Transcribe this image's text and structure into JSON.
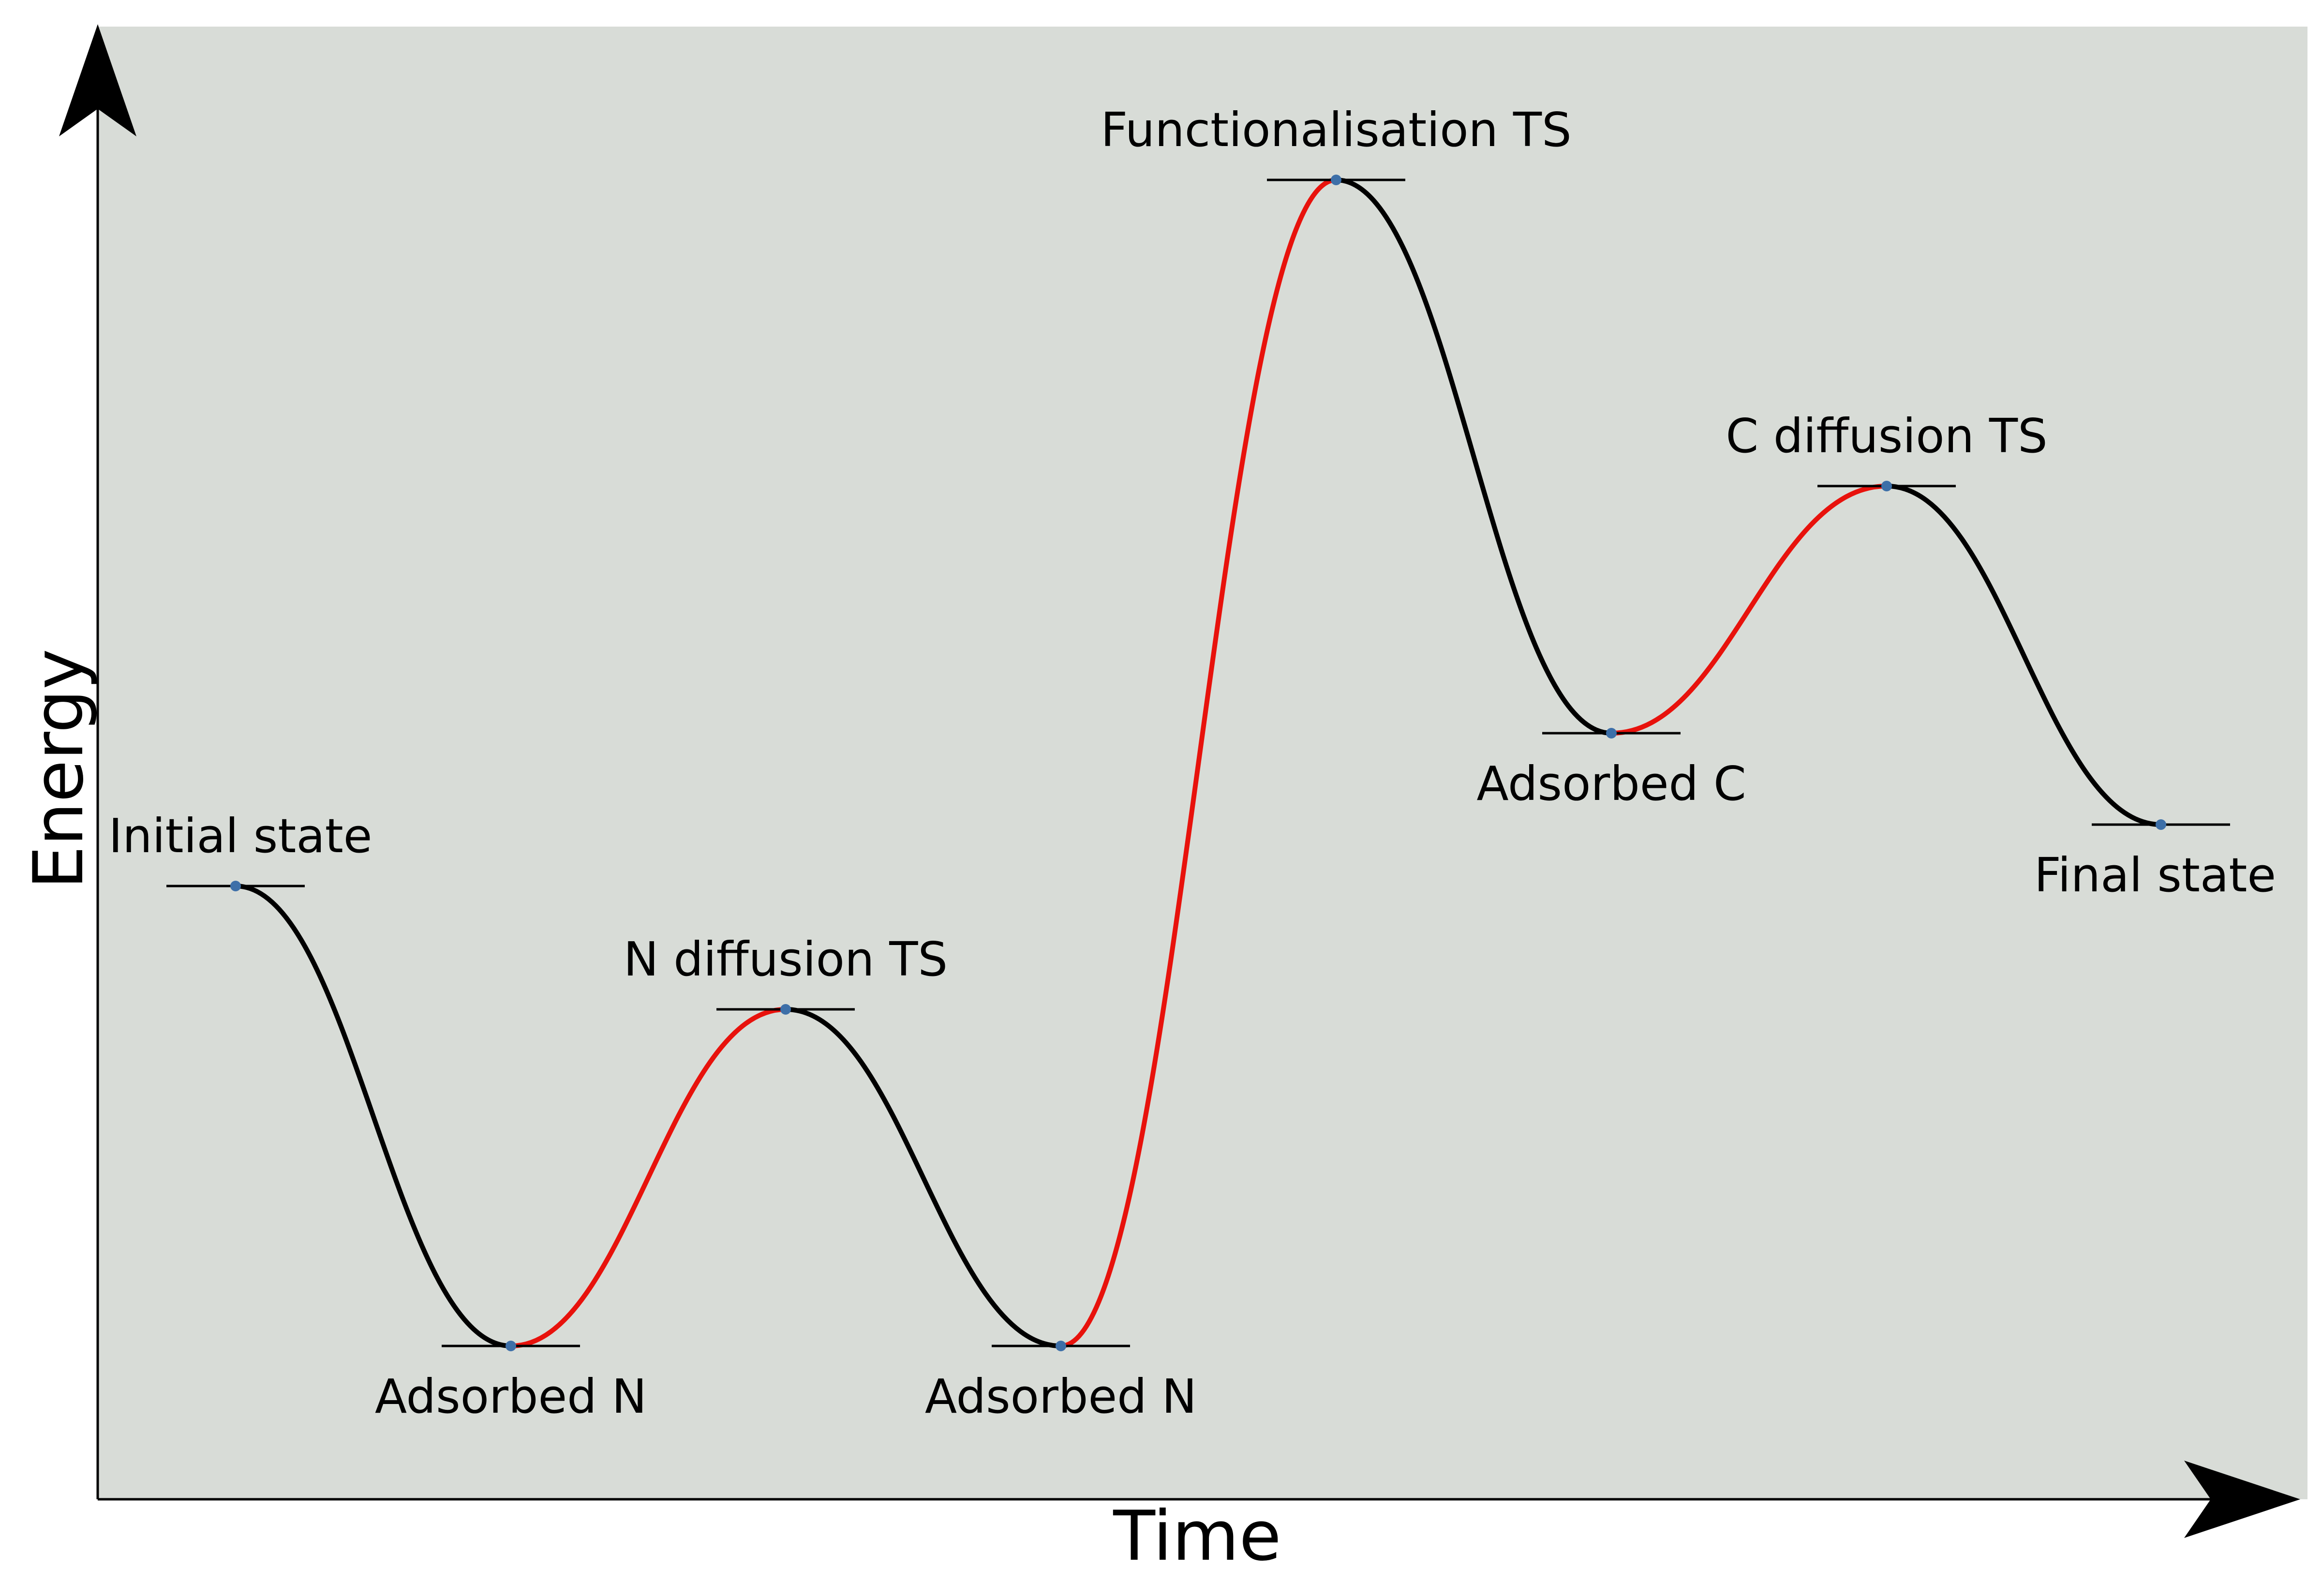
{
  "diagram": {
    "x_axis_label": "Time",
    "y_axis_label": "Energy",
    "background_color": "#d8dcd7",
    "default_path_color": "#000000",
    "highlight_path_color": "#e8120c",
    "point_color": "#3d6fa8",
    "states": [
      {
        "name": "Initial state",
        "label_position": "above"
      },
      {
        "name": "Adsorbed N",
        "label_position": "below"
      },
      {
        "name": "N diffusion TS",
        "label_position": "above"
      },
      {
        "name": "Adsorbed N",
        "label_position": "below"
      },
      {
        "name": "Functionalisation TS",
        "label_position": "above"
      },
      {
        "name": "Adsorbed C",
        "label_position": "below"
      },
      {
        "name": "C diffusion TS",
        "label_position": "above"
      },
      {
        "name": "Final state",
        "label_position": "below"
      }
    ],
    "segments": [
      {
        "from": 0,
        "to": 1,
        "highlighted": false
      },
      {
        "from": 1,
        "to": 2,
        "highlighted": true
      },
      {
        "from": 2,
        "to": 3,
        "highlighted": false
      },
      {
        "from": 3,
        "to": 4,
        "highlighted": true
      },
      {
        "from": 4,
        "to": 5,
        "highlighted": false
      },
      {
        "from": 5,
        "to": 6,
        "highlighted": true
      },
      {
        "from": 6,
        "to": 7,
        "highlighted": false
      }
    ]
  }
}
